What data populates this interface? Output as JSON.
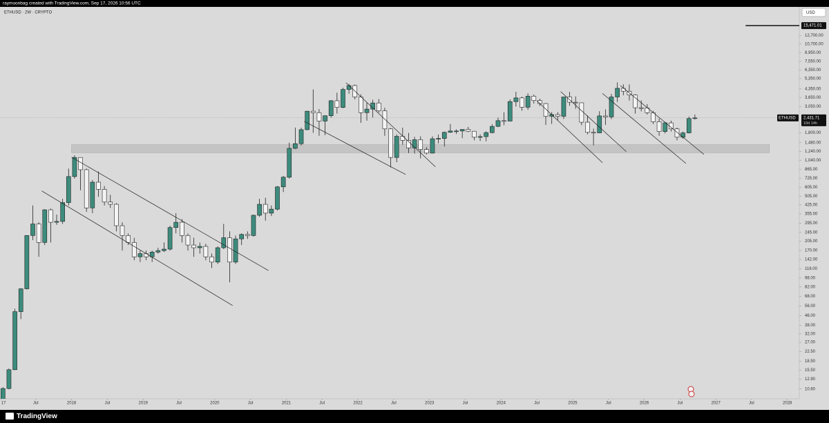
{
  "credit": "raymoonbag created with TradingView.com, Sep 17, 2026 10:56 UTC",
  "symbol_info": "ETHUSD · 2W · CRYPTO",
  "currency": "USD",
  "brand": "TradingView",
  "chart_data": {
    "type": "candlestick",
    "log_scale": true,
    "up_color": "#3d8c7d",
    "down_color": "#f4f4f4",
    "ylim": [
      8.7,
      22500
    ],
    "xlim": [
      "2017-01",
      "2028-03"
    ],
    "yticks": [
      {
        "value": 10.6,
        "label": "10.60"
      },
      {
        "value": 12.9,
        "label": "12.90"
      },
      {
        "value": 15.5,
        "label": "15.50"
      },
      {
        "value": 18.5,
        "label": "18.50"
      },
      {
        "value": 22.5,
        "label": "22.50"
      },
      {
        "value": 27,
        "label": "27.00"
      },
      {
        "value": 32,
        "label": "32.00"
      },
      {
        "value": 38,
        "label": "38.00"
      },
      {
        "value": 46,
        "label": "46.00"
      },
      {
        "value": 56,
        "label": "56.00"
      },
      {
        "value": 68,
        "label": "68.00"
      },
      {
        "value": 82,
        "label": "82.00"
      },
      {
        "value": 98,
        "label": "98.00"
      },
      {
        "value": 118,
        "label": "118.00"
      },
      {
        "value": 142,
        "label": "142.00"
      },
      {
        "value": 170,
        "label": "170.00"
      },
      {
        "value": 205,
        "label": "205.00"
      },
      {
        "value": 245,
        "label": "245.00"
      },
      {
        "value": 295,
        "label": "295.00"
      },
      {
        "value": 355,
        "label": "355.00"
      },
      {
        "value": 425,
        "label": "425.00"
      },
      {
        "value": 505,
        "label": "505.00"
      },
      {
        "value": 605,
        "label": "605.00"
      },
      {
        "value": 725,
        "label": "725.00"
      },
      {
        "value": 865,
        "label": "865.00"
      },
      {
        "value": 1040,
        "label": "1,040.00"
      },
      {
        "value": 1240,
        "label": "1,240.00"
      },
      {
        "value": 1480,
        "label": "1,480.00"
      },
      {
        "value": 1800,
        "label": "1,800.00"
      },
      {
        "value": 3050,
        "label": "3,050.00"
      },
      {
        "value": 3650,
        "label": "3,650.00"
      },
      {
        "value": 4350,
        "label": "4,350.00"
      },
      {
        "value": 5350,
        "label": "5,350.00"
      },
      {
        "value": 6350,
        "label": "6,350.00"
      },
      {
        "value": 7550,
        "label": "7,550.00"
      },
      {
        "value": 8950,
        "label": "8,950.00"
      },
      {
        "value": 10700,
        "label": "10,700.00"
      },
      {
        "value": 12700,
        "label": "12,700.00"
      }
    ],
    "xticks": [
      {
        "value": "2017-01",
        "label": "17"
      },
      {
        "value": "2017-07",
        "label": "Jul"
      },
      {
        "value": "2018-01",
        "label": "2018"
      },
      {
        "value": "2018-07",
        "label": "Jul"
      },
      {
        "value": "2019-01",
        "label": "2019"
      },
      {
        "value": "2019-07",
        "label": "Jul"
      },
      {
        "value": "2020-01",
        "label": "2020"
      },
      {
        "value": "2020-07",
        "label": "Jul"
      },
      {
        "value": "2021-01",
        "label": "2021"
      },
      {
        "value": "2021-07",
        "label": "Jul"
      },
      {
        "value": "2022-01",
        "label": "2022"
      },
      {
        "value": "2022-07",
        "label": "Jul"
      },
      {
        "value": "2023-01",
        "label": "2023"
      },
      {
        "value": "2023-07",
        "label": "Jul"
      },
      {
        "value": "2024-01",
        "label": "2024"
      },
      {
        "value": "2024-07",
        "label": "Jul"
      },
      {
        "value": "2025-01",
        "label": "2025"
      },
      {
        "value": "2025-07",
        "label": "Jul"
      },
      {
        "value": "2026-01",
        "label": "2026"
      },
      {
        "value": "2026-07",
        "label": "Jul"
      },
      {
        "value": "2027-01",
        "label": "2027"
      },
      {
        "value": "2027-07",
        "label": "Jul"
      },
      {
        "value": "2028-01",
        "label": "2028"
      }
    ],
    "x": [
      "2017-01",
      "2017-02",
      "2017-03",
      "2017-04",
      "2017-05",
      "2017-06",
      "2017-07",
      "2017-08",
      "2017-09",
      "2017-10",
      "2017-11",
      "2017-12",
      "2018-01",
      "2018-02",
      "2018-03",
      "2018-04",
      "2018-05",
      "2018-06",
      "2018-07",
      "2018-08",
      "2018-09",
      "2018-10",
      "2018-11",
      "2018-12",
      "2019-01",
      "2019-02",
      "2019-03",
      "2019-04",
      "2019-05",
      "2019-06",
      "2019-07",
      "2019-08",
      "2019-09",
      "2019-10",
      "2019-11",
      "2019-12",
      "2020-01",
      "2020-02",
      "2020-03",
      "2020-04",
      "2020-05",
      "2020-06",
      "2020-07",
      "2020-08",
      "2020-09",
      "2020-10",
      "2020-11",
      "2020-12",
      "2021-01",
      "2021-02",
      "2021-03",
      "2021-04",
      "2021-05",
      "2021-06",
      "2021-07",
      "2021-08",
      "2021-09",
      "2021-10",
      "2021-11",
      "2021-12",
      "2022-01",
      "2022-02",
      "2022-03",
      "2022-04",
      "2022-05",
      "2022-06",
      "2022-07",
      "2022-08",
      "2022-09",
      "2022-10",
      "2022-11",
      "2022-12",
      "2023-01",
      "2023-02",
      "2023-03",
      "2023-04",
      "2023-05",
      "2023-06",
      "2023-07",
      "2023-08",
      "2023-09",
      "2023-10",
      "2023-11",
      "2023-12",
      "2024-01",
      "2024-02",
      "2024-03",
      "2024-04",
      "2024-05",
      "2024-06",
      "2024-07",
      "2024-08",
      "2024-09",
      "2024-10",
      "2024-11",
      "2024-12",
      "2025-01",
      "2025-02",
      "2025-03",
      "2025-04",
      "2025-05",
      "2025-06",
      "2025-07",
      "2025-08",
      "2025-09",
      "2025-10",
      "2025-11",
      "2025-12",
      "2026-01",
      "2026-02",
      "2026-03",
      "2026-04",
      "2026-05",
      "2026-06",
      "2026-07",
      "2026-08",
      "2026-09"
    ],
    "candles": [
      [
        8,
        11,
        8,
        10.7
      ],
      [
        10.7,
        16,
        10.5,
        15.6
      ],
      [
        15.6,
        53,
        15.5,
        50
      ],
      [
        50,
        80,
        43,
        79
      ],
      [
        79,
        232,
        78,
        230
      ],
      [
        230,
        420,
        210,
        290
      ],
      [
        290,
        300,
        150,
        200
      ],
      [
        200,
        390,
        190,
        385
      ],
      [
        385,
        395,
        200,
        300
      ],
      [
        300,
        350,
        285,
        305
      ],
      [
        305,
        480,
        290,
        445
      ],
      [
        445,
        880,
        420,
        750
      ],
      [
        750,
        1150,
        720,
        1100
      ],
      [
        1100,
        1100,
        570,
        860
      ],
      [
        860,
        880,
        370,
        400
      ],
      [
        400,
        700,
        360,
        670
      ],
      [
        670,
        830,
        500,
        580
      ],
      [
        580,
        620,
        420,
        450
      ],
      [
        450,
        520,
        400,
        430
      ],
      [
        430,
        440,
        250,
        280
      ],
      [
        280,
        300,
        170,
        230
      ],
      [
        230,
        240,
        190,
        200
      ],
      [
        200,
        220,
        140,
        150
      ],
      [
        150,
        170,
        135,
        160
      ],
      [
        160,
        170,
        140,
        150
      ],
      [
        150,
        170,
        135,
        165
      ],
      [
        165,
        180,
        160,
        170
      ],
      [
        170,
        200,
        165,
        175
      ],
      [
        175,
        280,
        170,
        270
      ],
      [
        270,
        360,
        240,
        300
      ],
      [
        300,
        320,
        200,
        230
      ],
      [
        230,
        240,
        170,
        190
      ],
      [
        190,
        220,
        150,
        180
      ],
      [
        180,
        200,
        160,
        185
      ],
      [
        185,
        195,
        140,
        150
      ],
      [
        150,
        160,
        120,
        135
      ],
      [
        135,
        185,
        130,
        180
      ],
      [
        180,
        290,
        175,
        220
      ],
      [
        220,
        250,
        90,
        135
      ],
      [
        135,
        230,
        130,
        215
      ],
      [
        215,
        240,
        190,
        235
      ],
      [
        235,
        250,
        215,
        230
      ],
      [
        230,
        350,
        225,
        345
      ],
      [
        345,
        480,
        335,
        430
      ],
      [
        430,
        490,
        310,
        360
      ],
      [
        360,
        420,
        340,
        390
      ],
      [
        390,
        620,
        380,
        610
      ],
      [
        610,
        760,
        550,
        740
      ],
      [
        740,
        1480,
        720,
        1320
      ],
      [
        1320,
        2000,
        1300,
        1450
      ],
      [
        1450,
        2000,
        1400,
        1920
      ],
      [
        1920,
        2800,
        1900,
        2780
      ],
      [
        2780,
        4300,
        1800,
        2700
      ],
      [
        2700,
        2900,
        1700,
        2280
      ],
      [
        2280,
        2550,
        1720,
        2540
      ],
      [
        2540,
        3480,
        2450,
        3430
      ],
      [
        3430,
        4030,
        2650,
        3000
      ],
      [
        3000,
        4450,
        2950,
        4300
      ],
      [
        4300,
        4800,
        3950,
        4650
      ],
      [
        4650,
        4750,
        3520,
        3700
      ],
      [
        3700,
        3900,
        2200,
        2700
      ],
      [
        2700,
        3300,
        2300,
        2900
      ],
      [
        2900,
        3500,
        2450,
        3280
      ],
      [
        3280,
        3550,
        2700,
        2800
      ],
      [
        2800,
        2980,
        1700,
        1950
      ],
      [
        1950,
        1980,
        900,
        1100
      ],
      [
        1100,
        1750,
        1000,
        1680
      ],
      [
        1680,
        2000,
        1420,
        1550
      ],
      [
        1550,
        1800,
        1200,
        1330
      ],
      [
        1330,
        1660,
        1190,
        1570
      ],
      [
        1570,
        1680,
        1080,
        1290
      ],
      [
        1290,
        1350,
        1170,
        1200
      ],
      [
        1200,
        1680,
        1190,
        1600
      ],
      [
        1600,
        1740,
        1460,
        1610
      ],
      [
        1610,
        1850,
        1370,
        1820
      ],
      [
        1820,
        2150,
        1800,
        1870
      ],
      [
        1870,
        1930,
        1760,
        1870
      ],
      [
        1870,
        1930,
        1620,
        1930
      ],
      [
        1930,
        2030,
        1830,
        1860
      ],
      [
        1860,
        1870,
        1550,
        1650
      ],
      [
        1650,
        1750,
        1530,
        1670
      ],
      [
        1670,
        1860,
        1520,
        1810
      ],
      [
        1810,
        2140,
        1780,
        2050
      ],
      [
        2050,
        2450,
        2020,
        2300
      ],
      [
        2300,
        2720,
        2100,
        2280
      ],
      [
        2280,
        3520,
        2270,
        3370
      ],
      [
        3370,
        4100,
        3050,
        3630
      ],
      [
        3630,
        3720,
        2810,
        3010
      ],
      [
        3010,
        3980,
        2860,
        3760
      ],
      [
        3760,
        3880,
        3240,
        3440
      ],
      [
        3440,
        3560,
        3090,
        3240
      ],
      [
        3240,
        3270,
        2110,
        2510
      ],
      [
        2510,
        2730,
        2150,
        2600
      ],
      [
        2600,
        2730,
        2300,
        2510
      ],
      [
        2510,
        3680,
        2380,
        3700
      ],
      [
        3700,
        4100,
        3100,
        3330
      ],
      [
        3330,
        3740,
        2920,
        3290
      ],
      [
        3290,
        3300,
        2100,
        2230
      ],
      [
        2230,
        2550,
        1750,
        1820
      ],
      [
        1820,
        1960,
        1400,
        1800
      ],
      [
        1800,
        2780,
        1790,
        2530
      ],
      [
        2530,
        2880,
        2110,
        2480
      ],
      [
        2480,
        3940,
        2370,
        3700
      ],
      [
        3700,
        4950,
        3350,
        4400
      ],
      [
        4400,
        4770,
        3820,
        4150
      ],
      [
        4150,
        4750,
        3440,
        3850
      ],
      [
        3850,
        3900,
        2650,
        2980
      ],
      [
        2980,
        3450,
        2770,
        2970
      ],
      [
        2970,
        3200,
        2600,
        2700
      ],
      [
        2700,
        2800,
        2150,
        2250
      ],
      [
        2250,
        2400,
        1700,
        1850
      ],
      [
        1850,
        2250,
        1780,
        2200
      ],
      [
        2200,
        2300,
        1850,
        1950
      ],
      [
        1950,
        2000,
        1550,
        1650
      ],
      [
        1650,
        1850,
        1600,
        1800
      ],
      [
        1800,
        2500,
        1780,
        2400
      ],
      [
        2400,
        2600,
        2350,
        2431.71
      ]
    ],
    "zone": {
      "from": "2018-01",
      "to": "2027-10",
      "low": 1210,
      "high": 1420
    },
    "trendlines": [
      {
        "x": [
          "2018-01",
          "2020-10"
        ],
        "y": [
          1105,
          114
        ]
      },
      {
        "x": [
          "2017-08",
          "2020-04"
        ],
        "y": [
          562,
          56.5
        ]
      },
      {
        "x": [
          "2021-11",
          "2023-02"
        ],
        "y": [
          4920,
          912
        ]
      },
      {
        "x": [
          "2021-04",
          "2022-09"
        ],
        "y": [
          2270,
          782
        ]
      },
      {
        "x": [
          "2024-07",
          "2025-06"
        ],
        "y": [
          3435,
          990
        ]
      },
      {
        "x": [
          "2024-11",
          "2025-10"
        ],
        "y": [
          4115,
          1235
        ]
      },
      {
        "x": [
          "2025-06",
          "2026-08"
        ],
        "y": [
          3970,
          975
        ]
      },
      {
        "x": [
          "2025-09",
          "2026-11"
        ],
        "y": [
          4650,
          1170
        ]
      }
    ],
    "hline": {
      "from": "2027-06",
      "value": 15471.01,
      "label": "15,471.01"
    },
    "last": {
      "symbol": "ETHUSD",
      "value": 2431.71,
      "label": "2,431.71",
      "countdown": "10d 14h"
    }
  }
}
